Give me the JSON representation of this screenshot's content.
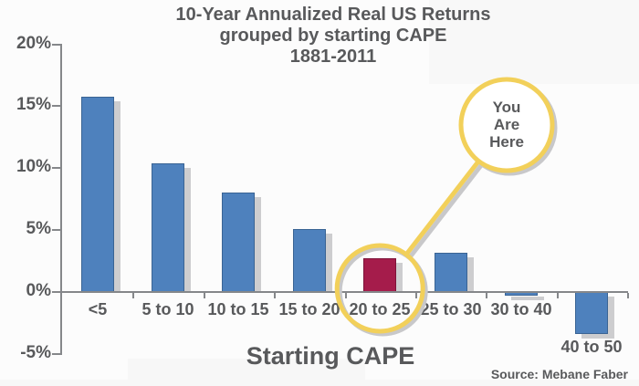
{
  "chart_data": {
    "type": "bar",
    "title_lines": [
      "10-Year Annualized Real US Returns",
      "grouped by starting CAPE",
      "1881-2011"
    ],
    "categories": [
      "<5",
      "5 to 10",
      "10 to 15",
      "15 to 20",
      "20 to 25",
      "25 to 30",
      "30 to 40",
      "40 to 50"
    ],
    "values": [
      15.8,
      10.4,
      8.0,
      5.1,
      2.7,
      3.2,
      -0.3,
      -3.4
    ],
    "highlight_index": 4,
    "xlabel": "Starting CAPE",
    "ylabel": "",
    "ylim": [
      -5,
      20
    ],
    "yticks": [
      {
        "label": "20%",
        "value": 20
      },
      {
        "label": "15%",
        "value": 15
      },
      {
        "label": "10%",
        "value": 10
      },
      {
        "label": "5%",
        "value": 5
      },
      {
        "label": "0%",
        "value": 0
      },
      {
        "label": "-5%",
        "value": -5
      }
    ],
    "grid": false,
    "legend": false,
    "annotation": {
      "lines": [
        "You",
        "Are",
        "Here"
      ],
      "target_category": "20 to 25"
    },
    "source": "Source: Mebane Faber",
    "colors": {
      "bar": "#4e81bd",
      "bar_border": "#3a6494",
      "highlight": "#a51c4b",
      "highlight_border": "#7d1339",
      "shadow": "#cdcdcf",
      "axis": "#85878a",
      "text": "#58595b",
      "annotation_ring": "#f2d05a",
      "annotation_shadow": "#c8c8ca",
      "background": "#fcfcfc"
    }
  }
}
